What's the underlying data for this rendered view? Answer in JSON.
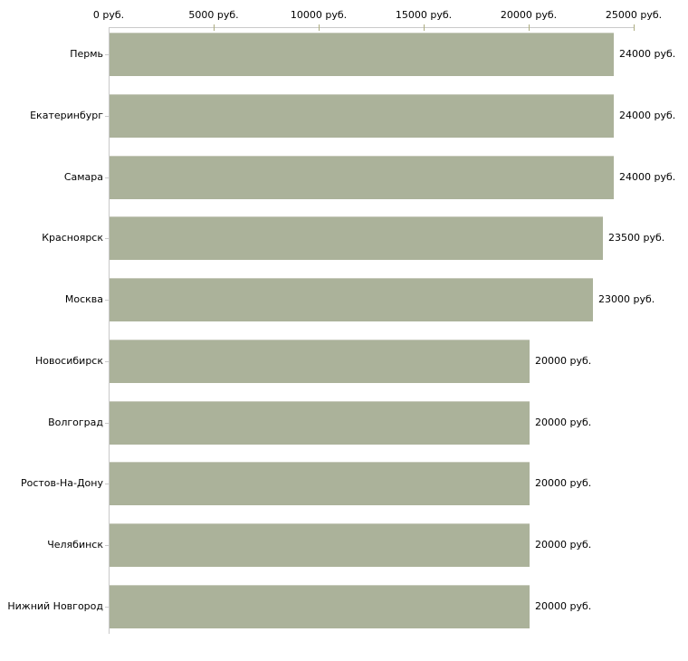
{
  "chart_data": {
    "type": "bar",
    "orientation": "horizontal",
    "title": "",
    "xlabel": "",
    "ylabel": "",
    "unit": "руб.",
    "categories": [
      "Пермь",
      "Екатеринбург",
      "Самара",
      "Красноярск",
      "Москва",
      "Новосибирск",
      "Волгоград",
      "Ростов-На-Дону",
      "Челябинск",
      "Нижний Новгород"
    ],
    "values": [
      24000,
      24000,
      24000,
      23500,
      23000,
      20000,
      20000,
      20000,
      20000,
      20000
    ],
    "value_labels": [
      "24000 руб.",
      "24000 руб.",
      "24000 руб.",
      "23500 руб.",
      "23000 руб.",
      "20000 руб.",
      "20000 руб.",
      "20000 руб.",
      "20000 руб.",
      "20000 руб."
    ],
    "x_axis": {
      "position": "top",
      "range": [
        0,
        25000
      ],
      "ticks": [
        0,
        5000,
        10000,
        15000,
        20000,
        25000
      ],
      "tick_labels": [
        "0 руб.",
        "5000 руб.",
        "10000 руб.",
        "15000 руб.",
        "20000 руб.",
        "25000 руб."
      ]
    },
    "legend": null,
    "grid": false,
    "colors": {
      "bar_fill": "#abb29a",
      "bar_top_edge": "#c7cabb",
      "axis_line": "#c9c9c9",
      "axis_tick": "#adad80",
      "text": "#000000",
      "background": "#ffffff"
    }
  }
}
